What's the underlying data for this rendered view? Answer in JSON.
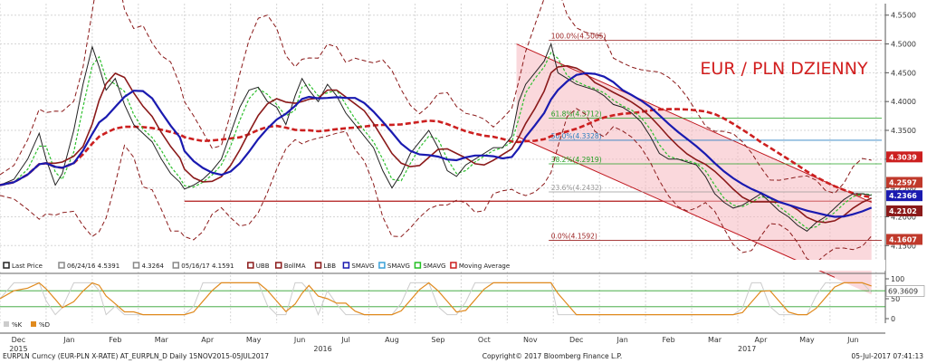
{
  "chart_data": {
    "type": "line",
    "title": "EUR / PLN DZIENNY",
    "ylim": [
      4.13,
      4.57
    ],
    "y_ticks": [
      "4.5500",
      "4.5000",
      "4.4500",
      "4.4000",
      "4.3500",
      "4.3000",
      "4.2500",
      "4.2000",
      "4.1500"
    ],
    "x_month_labels": [
      {
        "t": 0.4,
        "label": "Dec"
      },
      {
        "t": 1.5,
        "label": "Jan"
      },
      {
        "t": 2.5,
        "label": "Feb"
      },
      {
        "t": 3.5,
        "label": "Mar"
      },
      {
        "t": 4.5,
        "label": "Apr"
      },
      {
        "t": 5.5,
        "label": "May"
      },
      {
        "t": 6.5,
        "label": "Jun"
      },
      {
        "t": 7.5,
        "label": "Jul"
      },
      {
        "t": 8.5,
        "label": "Aug"
      },
      {
        "t": 9.5,
        "label": "Sep"
      },
      {
        "t": 10.5,
        "label": "Oct"
      },
      {
        "t": 11.5,
        "label": "Nov"
      },
      {
        "t": 12.5,
        "label": "Dec"
      },
      {
        "t": 13.5,
        "label": "Jan"
      },
      {
        "t": 14.5,
        "label": "Feb"
      },
      {
        "t": 15.5,
        "label": "Mar"
      },
      {
        "t": 16.5,
        "label": "Apr"
      },
      {
        "t": 17.5,
        "label": "May"
      },
      {
        "t": 18.5,
        "label": "Jun"
      }
    ],
    "x_year_labels": [
      {
        "t": 0.4,
        "label": "2015"
      },
      {
        "t": 7.0,
        "label": "2016"
      },
      {
        "t": 16.2,
        "label": "2017"
      }
    ],
    "price": [
      [
        0.0,
        4.255
      ],
      [
        0.3,
        4.265
      ],
      [
        0.6,
        4.3
      ],
      [
        0.85,
        4.345
      ],
      [
        1.0,
        4.3
      ],
      [
        1.2,
        4.255
      ],
      [
        1.35,
        4.275
      ],
      [
        1.6,
        4.35
      ],
      [
        1.8,
        4.43
      ],
      [
        2.0,
        4.495
      ],
      [
        2.15,
        4.46
      ],
      [
        2.3,
        4.42
      ],
      [
        2.5,
        4.44
      ],
      [
        2.7,
        4.395
      ],
      [
        2.9,
        4.36
      ],
      [
        3.1,
        4.345
      ],
      [
        3.3,
        4.33
      ],
      [
        3.5,
        4.3
      ],
      [
        3.7,
        4.275
      ],
      [
        3.9,
        4.26
      ],
      [
        4.0,
        4.248
      ],
      [
        4.2,
        4.255
      ],
      [
        4.4,
        4.265
      ],
      [
        4.6,
        4.28
      ],
      [
        4.8,
        4.3
      ],
      [
        5.0,
        4.345
      ],
      [
        5.2,
        4.39
      ],
      [
        5.4,
        4.42
      ],
      [
        5.6,
        4.425
      ],
      [
        5.8,
        4.4
      ],
      [
        6.0,
        4.39
      ],
      [
        6.2,
        4.36
      ],
      [
        6.4,
        4.41
      ],
      [
        6.55,
        4.44
      ],
      [
        6.7,
        4.42
      ],
      [
        6.9,
        4.4
      ],
      [
        7.1,
        4.43
      ],
      [
        7.3,
        4.41
      ],
      [
        7.5,
        4.38
      ],
      [
        7.7,
        4.36
      ],
      [
        7.9,
        4.34
      ],
      [
        8.1,
        4.32
      ],
      [
        8.3,
        4.28
      ],
      [
        8.5,
        4.25
      ],
      [
        8.7,
        4.275
      ],
      [
        8.9,
        4.31
      ],
      [
        9.1,
        4.33
      ],
      [
        9.3,
        4.35
      ],
      [
        9.5,
        4.32
      ],
      [
        9.7,
        4.28
      ],
      [
        9.9,
        4.27
      ],
      [
        10.1,
        4.29
      ],
      [
        10.3,
        4.3
      ],
      [
        10.5,
        4.31
      ],
      [
        10.7,
        4.32
      ],
      [
        10.9,
        4.32
      ],
      [
        11.1,
        4.34
      ],
      [
        11.25,
        4.4
      ],
      [
        11.4,
        4.43
      ],
      [
        11.6,
        4.45
      ],
      [
        11.8,
        4.47
      ],
      [
        11.95,
        4.5
      ],
      [
        12.1,
        4.45
      ],
      [
        12.3,
        4.44
      ],
      [
        12.5,
        4.43
      ],
      [
        12.7,
        4.425
      ],
      [
        12.9,
        4.42
      ],
      [
        13.1,
        4.41
      ],
      [
        13.3,
        4.395
      ],
      [
        13.5,
        4.39
      ],
      [
        13.7,
        4.38
      ],
      [
        13.9,
        4.365
      ],
      [
        14.1,
        4.34
      ],
      [
        14.3,
        4.31
      ],
      [
        14.5,
        4.3
      ],
      [
        14.7,
        4.3
      ],
      [
        14.9,
        4.295
      ],
      [
        15.1,
        4.29
      ],
      [
        15.3,
        4.27
      ],
      [
        15.5,
        4.24
      ],
      [
        15.7,
        4.225
      ],
      [
        15.9,
        4.215
      ],
      [
        16.1,
        4.22
      ],
      [
        16.3,
        4.23
      ],
      [
        16.5,
        4.24
      ],
      [
        16.7,
        4.225
      ],
      [
        16.9,
        4.21
      ],
      [
        17.1,
        4.2
      ],
      [
        17.3,
        4.185
      ],
      [
        17.5,
        4.175
      ],
      [
        17.7,
        4.19
      ],
      [
        17.9,
        4.2
      ],
      [
        18.1,
        4.215
      ],
      [
        18.3,
        4.23
      ],
      [
        18.5,
        4.24
      ],
      [
        18.7,
        4.24
      ],
      [
        18.9,
        4.237
      ]
    ],
    "series": [
      {
        "legend_label": "Last Price",
        "color": "#222222",
        "last_value": "4.2366"
      },
      {
        "legend_label": "BollMA",
        "color": "#8b1a1a",
        "last_value": "4.2102"
      },
      {
        "legend_label": "SMAVG",
        "color": "#1a1ab0",
        "last_value": "4.2366"
      },
      {
        "legend_label": "Moving Average",
        "color": "#cc1f1f",
        "last_value": "4.3039"
      },
      {
        "legend_label": "UBB",
        "color": "#8b1a1a",
        "last_value": "4.2597"
      },
      {
        "legend_label": "LBB",
        "color": "#8b1a1a",
        "last_value": "4.1607"
      }
    ],
    "value_tags": [
      {
        "value": 4.3039,
        "label": "4.3039",
        "color": "#cc1f1f"
      },
      {
        "value": 4.2597,
        "label": "4.2597",
        "color": "#c0392b"
      },
      {
        "value": 4.2366,
        "label": "4.2366",
        "color": "#1a1ab0"
      },
      {
        "value": 4.2102,
        "label": "4.2102",
        "color": "#8b1a1a"
      },
      {
        "value": 4.1607,
        "label": "4.1607",
        "color": "#c0392b"
      }
    ],
    "fib_levels": [
      {
        "value": 4.5065,
        "label": "100.0%(4.5065)",
        "color": "#9b2222"
      },
      {
        "value": 4.3712,
        "label": "61.8%(4.3712)",
        "color": "#22a022"
      },
      {
        "value": 4.3328,
        "label": "50.0%(4.3328)",
        "color": "#2a7fc0"
      },
      {
        "value": 4.2919,
        "label": "38.2%(4.2919)",
        "color": "#22a022"
      },
      {
        "value": 4.2432,
        "label": "23.6%(4.2432)",
        "color": "#999999"
      },
      {
        "value": 4.1592,
        "label": "0.0%(4.1592)",
        "color": "#9b2222"
      }
    ],
    "horizontal_line": 4.227,
    "legend": [
      {
        "text": "Last Price",
        "color": "#222222"
      },
      {
        "text": "06/24/16 4.5391",
        "color": "#888888"
      },
      {
        "text": "4.3264",
        "color": "#888888"
      },
      {
        "text": "05/16/17 4.1591",
        "color": "#888888"
      },
      {
        "text": "UBB",
        "color": "#8b1a1a"
      },
      {
        "text": "BollMA",
        "color": "#8b1a1a"
      },
      {
        "text": "LBB",
        "color": "#8b1a1a"
      },
      {
        "text": "SMAVG",
        "color": "#1a1ab0"
      },
      {
        "text": "SMAVG",
        "color": "#3aa0d8"
      },
      {
        "text": "SMAVG",
        "color": "#22c022"
      },
      {
        "text": "Moving Average",
        "color": "#cc1f1f"
      }
    ],
    "rsi": {
      "ylim": [
        0,
        100
      ],
      "y_ticks": [
        "100",
        "50",
        "0"
      ],
      "levels": [
        70,
        30
      ],
      "last_value": "69.3609",
      "legend": [
        {
          "text": "%K",
          "color": "#cccccc"
        },
        {
          "text": "%D",
          "color": "#e08a1e"
        }
      ]
    }
  },
  "footer": {
    "left": "EURPLN Curncy (EUR-PLN X-RATE) AT_EURPLN_D  Daily 15NOV2015-05JUL2017",
    "center": "Copyright© 2017 Bloomberg Finance L.P.",
    "right": "05-Jul-2017 07:41:13"
  }
}
